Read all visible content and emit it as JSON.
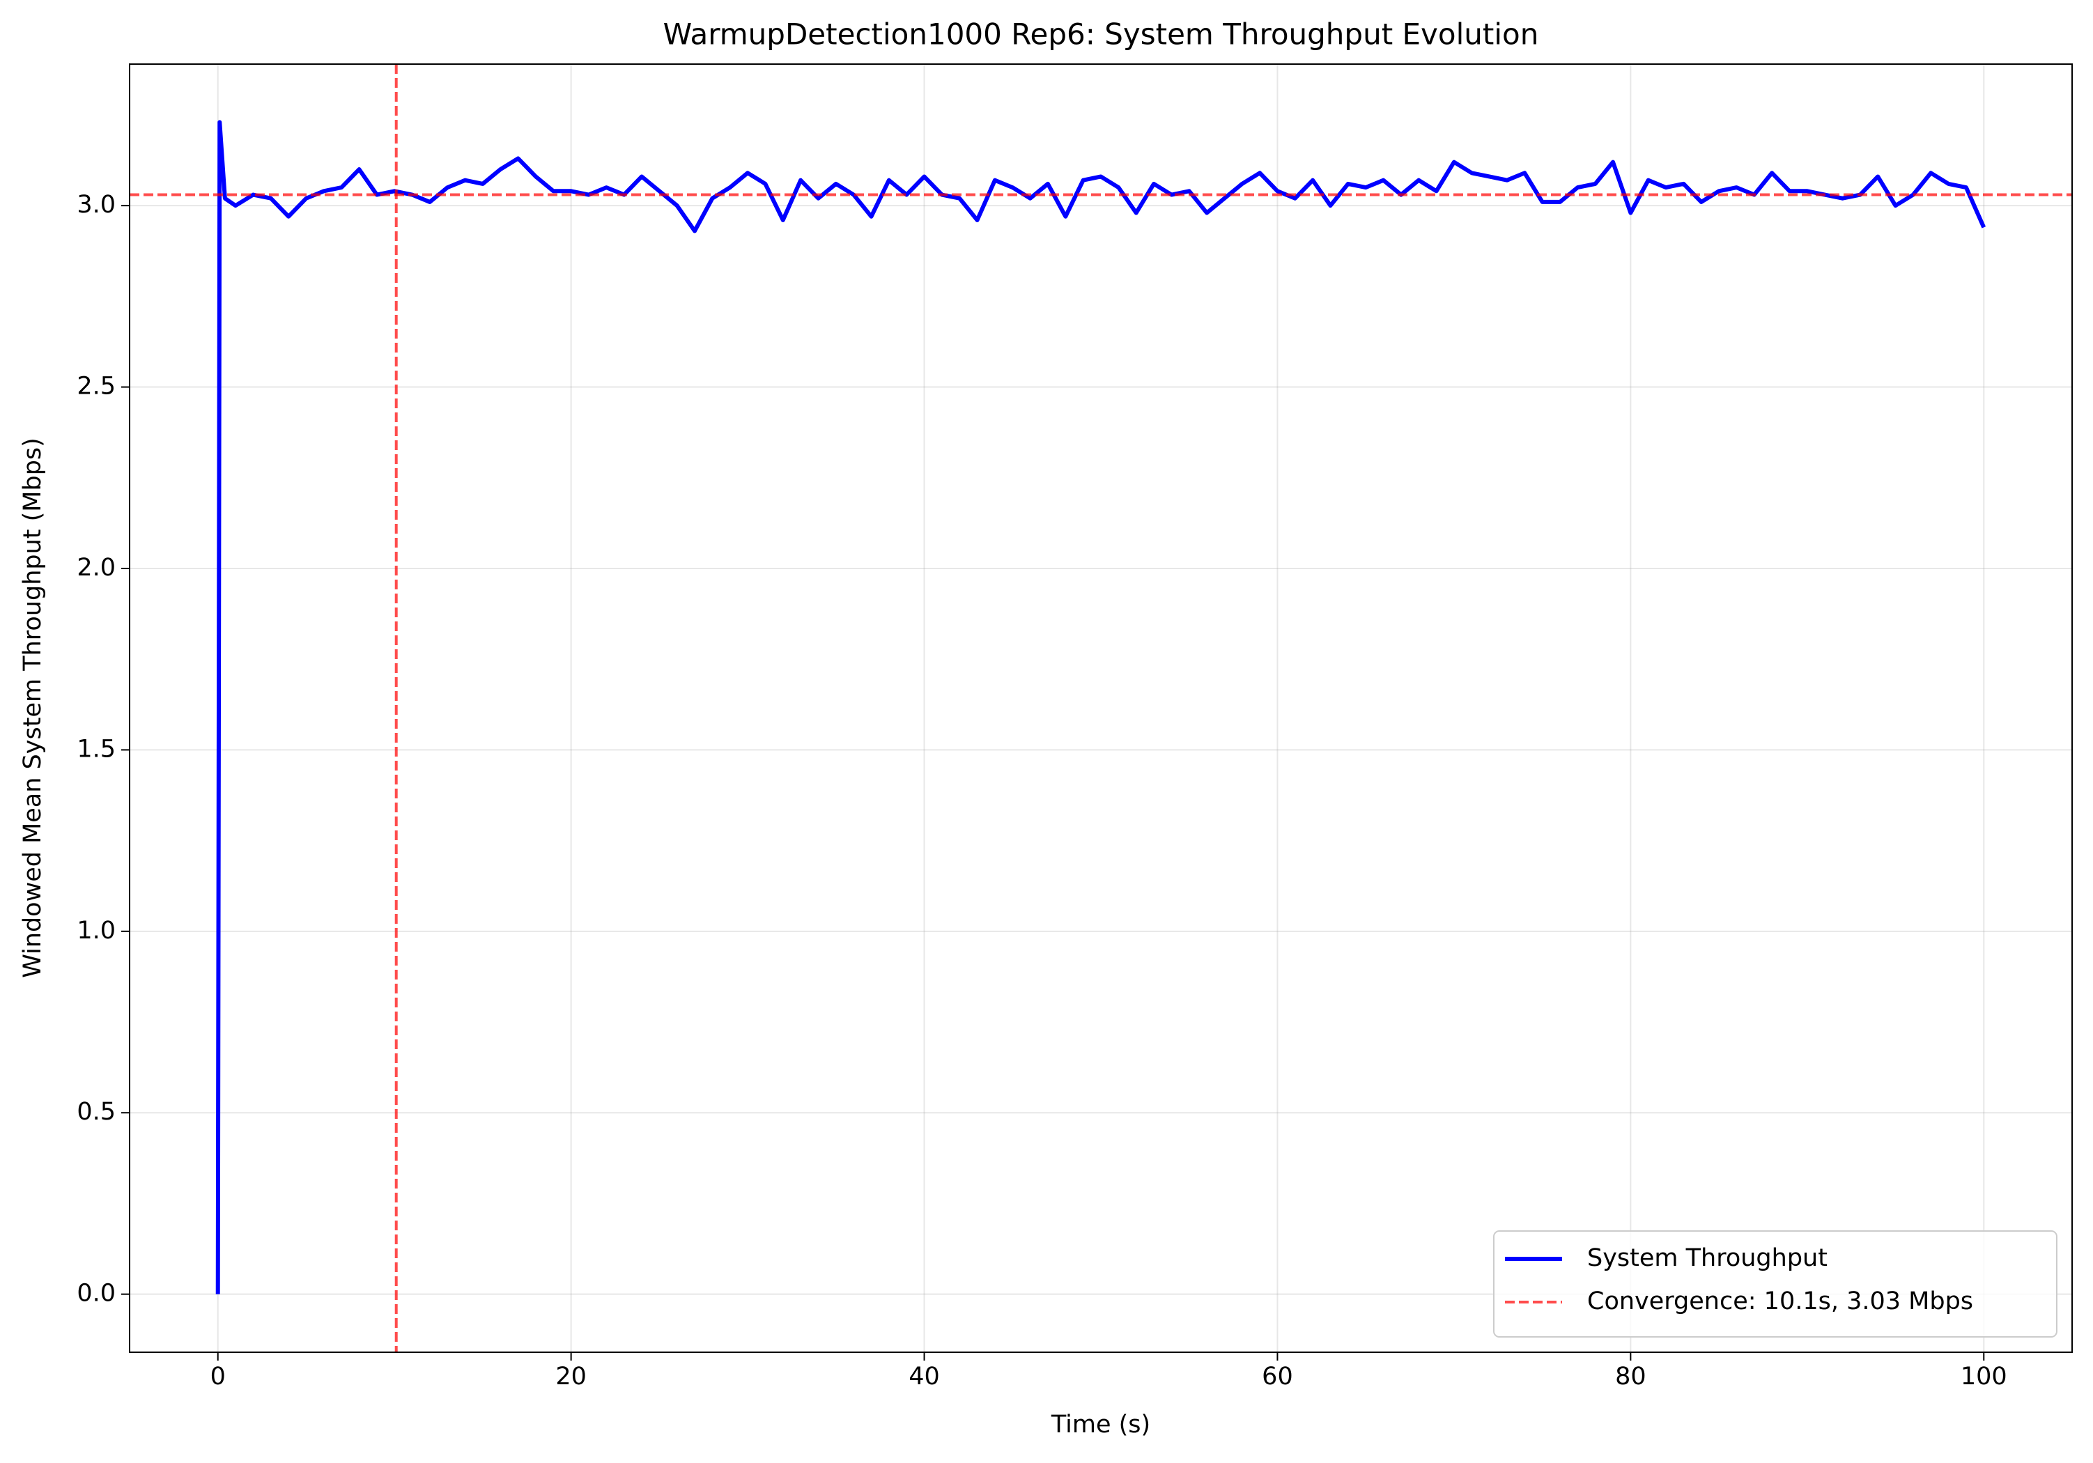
{
  "chart_data": {
    "type": "line",
    "title": "WarmupDetection1000 Rep6: System Throughput Evolution",
    "x_label": "Time (s)",
    "y_label": "Windowed Mean System Throughput (Mbps)",
    "x": [
      0,
      0.1,
      0.4,
      1,
      2,
      3,
      4,
      5,
      6,
      7,
      8,
      9,
      10,
      11,
      12,
      13,
      14,
      15,
      16,
      17,
      18,
      19,
      20,
      21,
      22,
      23,
      24,
      25,
      26,
      27,
      28,
      29,
      30,
      31,
      32,
      33,
      34,
      35,
      36,
      37,
      38,
      39,
      40,
      41,
      42,
      43,
      44,
      45,
      46,
      47,
      48,
      49,
      50,
      51,
      52,
      53,
      54,
      55,
      56,
      57,
      58,
      59,
      60,
      61,
      62,
      63,
      64,
      65,
      66,
      67,
      68,
      69,
      70,
      71,
      72,
      73,
      74,
      75,
      76,
      77,
      78,
      79,
      80,
      81,
      82,
      83,
      84,
      85,
      86,
      87,
      88,
      89,
      90,
      91,
      92,
      93,
      94,
      95,
      96,
      97,
      98,
      99,
      100
    ],
    "series": [
      {
        "name": "System Throughput",
        "color": "#0000ff",
        "values": [
          0,
          3.23,
          3.02,
          3.0,
          3.03,
          3.02,
          2.97,
          3.02,
          3.04,
          3.05,
          3.1,
          3.03,
          3.04,
          3.03,
          3.01,
          3.05,
          3.07,
          3.06,
          3.1,
          3.13,
          3.08,
          3.04,
          3.04,
          3.03,
          3.05,
          3.03,
          3.08,
          3.04,
          3.0,
          2.93,
          3.02,
          3.05,
          3.09,
          3.06,
          2.96,
          3.07,
          3.02,
          3.06,
          3.03,
          2.97,
          3.07,
          3.03,
          3.08,
          3.03,
          3.02,
          2.96,
          3.07,
          3.05,
          3.02,
          3.06,
          2.97,
          3.07,
          3.08,
          3.05,
          2.98,
          3.06,
          3.03,
          3.04,
          2.98,
          3.02,
          3.06,
          3.09,
          3.04,
          3.02,
          3.07,
          3.0,
          3.06,
          3.05,
          3.07,
          3.03,
          3.07,
          3.04,
          3.12,
          3.09,
          3.08,
          3.07,
          3.09,
          3.01,
          3.01,
          3.05,
          3.06,
          3.12,
          2.98,
          3.07,
          3.05,
          3.06,
          3.01,
          3.04,
          3.05,
          3.03,
          3.09,
          3.04,
          3.04,
          3.03,
          3.02,
          3.03,
          3.08,
          3.0,
          3.03,
          3.09,
          3.06,
          3.05,
          2.94
        ]
      }
    ],
    "reference_lines": [
      {
        "name": "Convergence: 10.1s, 3.03 Mbps",
        "color": "#ff0000",
        "x": 10.1,
        "y": 3.03
      }
    ],
    "xlim": [
      -5,
      105
    ],
    "ylim": [
      -0.16,
      3.39
    ],
    "xticks": [
      0,
      20,
      40,
      60,
      80,
      100
    ],
    "yticks": [
      {
        "value": 0,
        "label": "0.0"
      },
      0.5,
      {
        "value": 1,
        "label": "1.0"
      },
      1.5,
      {
        "value": 2,
        "label": "2.0"
      },
      2.5,
      {
        "value": 3,
        "label": "3.0"
      }
    ],
    "grid": true,
    "legend": "lower right"
  }
}
